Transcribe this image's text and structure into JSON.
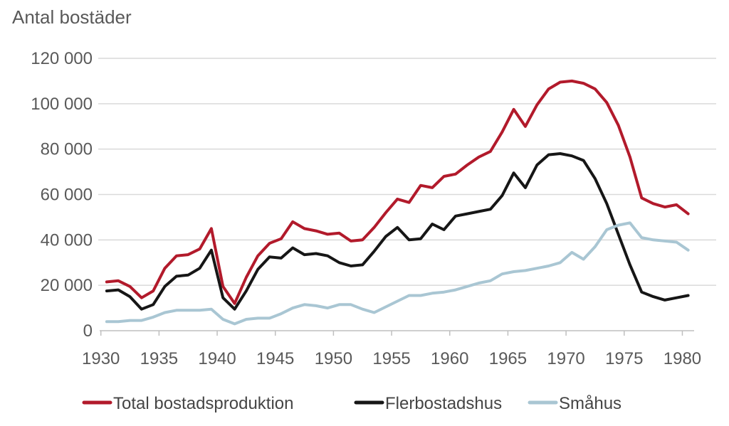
{
  "title": "Antal bostäder",
  "colors": {
    "total_line": "#b21a2b",
    "flerbostadshus_line": "#161616",
    "smahus_line": "#a9c6d3",
    "gridline": "#d9d9d9",
    "axis": "#bfbfbf",
    "text": "#595959"
  },
  "chart_data": {
    "type": "line",
    "title": "Antal bostäder",
    "xlabel": "",
    "ylabel": "Antal bostäder",
    "ylim": [
      0,
      120000
    ],
    "ytick_interval": 20000,
    "ytick_labels": [
      "0",
      "20 000",
      "40 000",
      "60 000",
      "80 000",
      "100 000",
      "120 000"
    ],
    "xtick_labels": [
      "1930",
      "1935",
      "1940",
      "1945",
      "1950",
      "1955",
      "1960",
      "1965",
      "1970",
      "1975",
      "1980"
    ],
    "grid": "horizontal",
    "legend_position": "bottom",
    "x": [
      1930,
      1931,
      1932,
      1933,
      1934,
      1935,
      1936,
      1937,
      1938,
      1939,
      1940,
      1941,
      1942,
      1943,
      1944,
      1945,
      1946,
      1947,
      1948,
      1949,
      1950,
      1951,
      1952,
      1953,
      1954,
      1955,
      1956,
      1957,
      1958,
      1959,
      1960,
      1961,
      1962,
      1963,
      1964,
      1965,
      1966,
      1967,
      1968,
      1969,
      1970,
      1971,
      1972,
      1973,
      1974,
      1975,
      1976,
      1977,
      1978,
      1979,
      1980
    ],
    "series": [
      {
        "name": "Total bostadsproduktion",
        "color": "#b21a2b",
        "values": [
          21500,
          22000,
          19500,
          14500,
          17500,
          27500,
          33000,
          33500,
          36000,
          45000,
          19500,
          12000,
          23500,
          33000,
          38500,
          40500,
          48000,
          45000,
          44000,
          42500,
          43000,
          39500,
          40000,
          45500,
          52000,
          58000,
          56500,
          64000,
          63000,
          68000,
          69000,
          73000,
          76500,
          79000,
          87500,
          97500,
          90000,
          99500,
          106500,
          109500,
          110000,
          109000,
          106500,
          100500,
          90500,
          76500,
          58500,
          56000,
          54500,
          55500,
          51500
        ]
      },
      {
        "name": "Flerbostadshus",
        "color": "#161616",
        "values": [
          17500,
          18000,
          15000,
          9500,
          11500,
          19500,
          24000,
          24500,
          27500,
          35500,
          14500,
          9500,
          17500,
          27000,
          32500,
          32000,
          36500,
          33500,
          34000,
          33000,
          30000,
          28500,
          29000,
          35000,
          41500,
          45500,
          40000,
          40500,
          47000,
          44500,
          50500,
          51500,
          52500,
          53500,
          59500,
          69500,
          63000,
          73000,
          77500,
          78000,
          77000,
          75000,
          67000,
          56000,
          42500,
          29000,
          17000,
          15000,
          13500,
          14500,
          15500
        ]
      },
      {
        "name": "Småhus",
        "color": "#a9c6d3",
        "values": [
          4000,
          4000,
          4500,
          4500,
          6000,
          8000,
          9000,
          9000,
          9000,
          9500,
          5000,
          3000,
          5000,
          5500,
          5500,
          7500,
          10000,
          11500,
          11000,
          10000,
          11500,
          11500,
          9500,
          8000,
          10500,
          13000,
          15500,
          15500,
          16500,
          17000,
          18000,
          19500,
          21000,
          22000,
          25000,
          26000,
          26500,
          27500,
          28500,
          30000,
          34500,
          31500,
          37000,
          44500,
          46500,
          47500,
          41000,
          40000,
          39500,
          39000,
          35500
        ]
      }
    ]
  }
}
